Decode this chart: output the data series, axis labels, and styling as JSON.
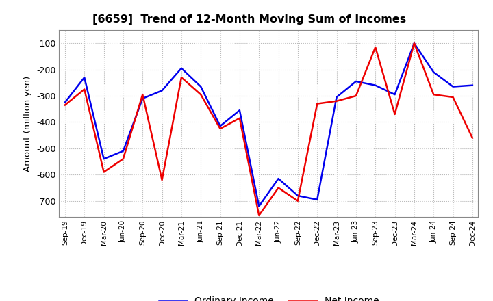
{
  "title": "[6659]  Trend of 12-Month Moving Sum of Incomes",
  "ylabel": "Amount (million yen)",
  "x_labels": [
    "Sep-19",
    "Dec-19",
    "Mar-20",
    "Jun-20",
    "Sep-20",
    "Dec-20",
    "Mar-21",
    "Jun-21",
    "Sep-21",
    "Dec-21",
    "Mar-22",
    "Jun-22",
    "Sep-22",
    "Dec-22",
    "Mar-23",
    "Jun-23",
    "Sep-23",
    "Dec-23",
    "Mar-24",
    "Jun-24",
    "Sep-24",
    "Dec-24"
  ],
  "ordinary_income": [
    -325,
    -230,
    -540,
    -510,
    -310,
    -280,
    -195,
    -265,
    -415,
    -355,
    -720,
    -615,
    -680,
    -695,
    -305,
    -245,
    -260,
    -295,
    -100,
    -210,
    -265,
    -260
  ],
  "net_income": [
    -335,
    -275,
    -590,
    -540,
    -295,
    -620,
    -230,
    -295,
    -425,
    -385,
    -755,
    -650,
    -700,
    -330,
    -320,
    -300,
    -115,
    -370,
    -100,
    -295,
    -305,
    -460
  ],
  "ordinary_color": "#0000EE",
  "net_color": "#EE0000",
  "ylim_min": -755,
  "ylim_max": -50,
  "yticks": [
    -700,
    -600,
    -500,
    -400,
    -300,
    -200,
    -100
  ],
  "bg_color": "#FFFFFF",
  "grid_color": "#BBBBBB",
  "legend_ordinary": "Ordinary Income",
  "legend_net": "Net Income",
  "line_width": 1.8
}
